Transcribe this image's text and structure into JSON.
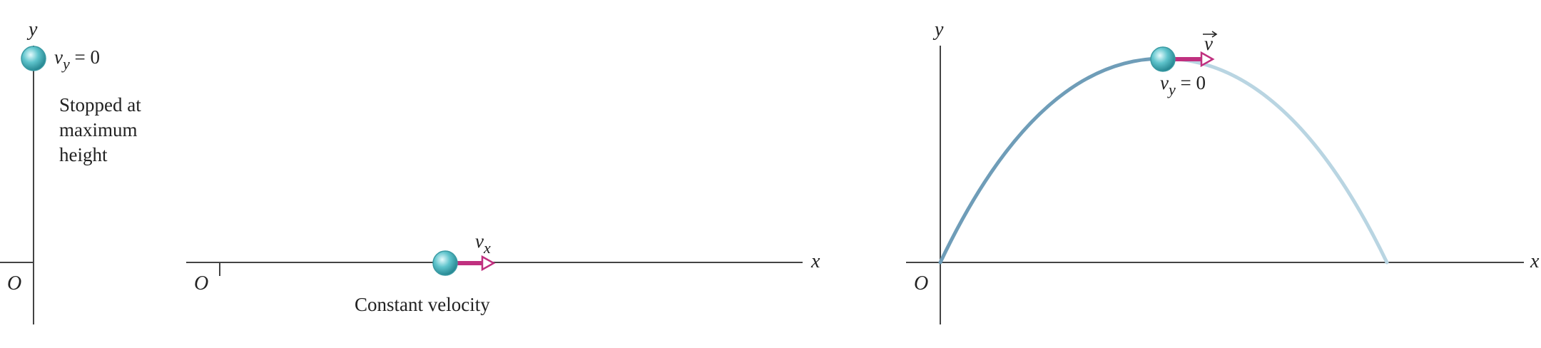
{
  "panel_a": {
    "axis_y": "y",
    "origin": "O",
    "velocity_label": {
      "symbol": "v",
      "subscript": "y",
      "rest": " = 0"
    },
    "caption_lines": [
      "Stopped at",
      "maximum",
      "height"
    ]
  },
  "panel_b": {
    "axis_x": "x",
    "origin": "O",
    "velocity_label": {
      "symbol": "v",
      "subscript": "x"
    },
    "caption": "Constant velocity"
  },
  "panel_c": {
    "axis_x": "x",
    "axis_y": "y",
    "origin": "O",
    "vector_label": "v",
    "velocity_label": {
      "symbol": "v",
      "subscript": "y",
      "rest": " = 0"
    }
  },
  "colors": {
    "ball": "#5fc4cc",
    "arrow": "#c0307f",
    "trajectory_rising": "#6f9db8",
    "trajectory_falling": "#b9d5e2",
    "axis": "#444444"
  },
  "icons": [
    "ball-icon",
    "velocity-arrow-icon"
  ]
}
